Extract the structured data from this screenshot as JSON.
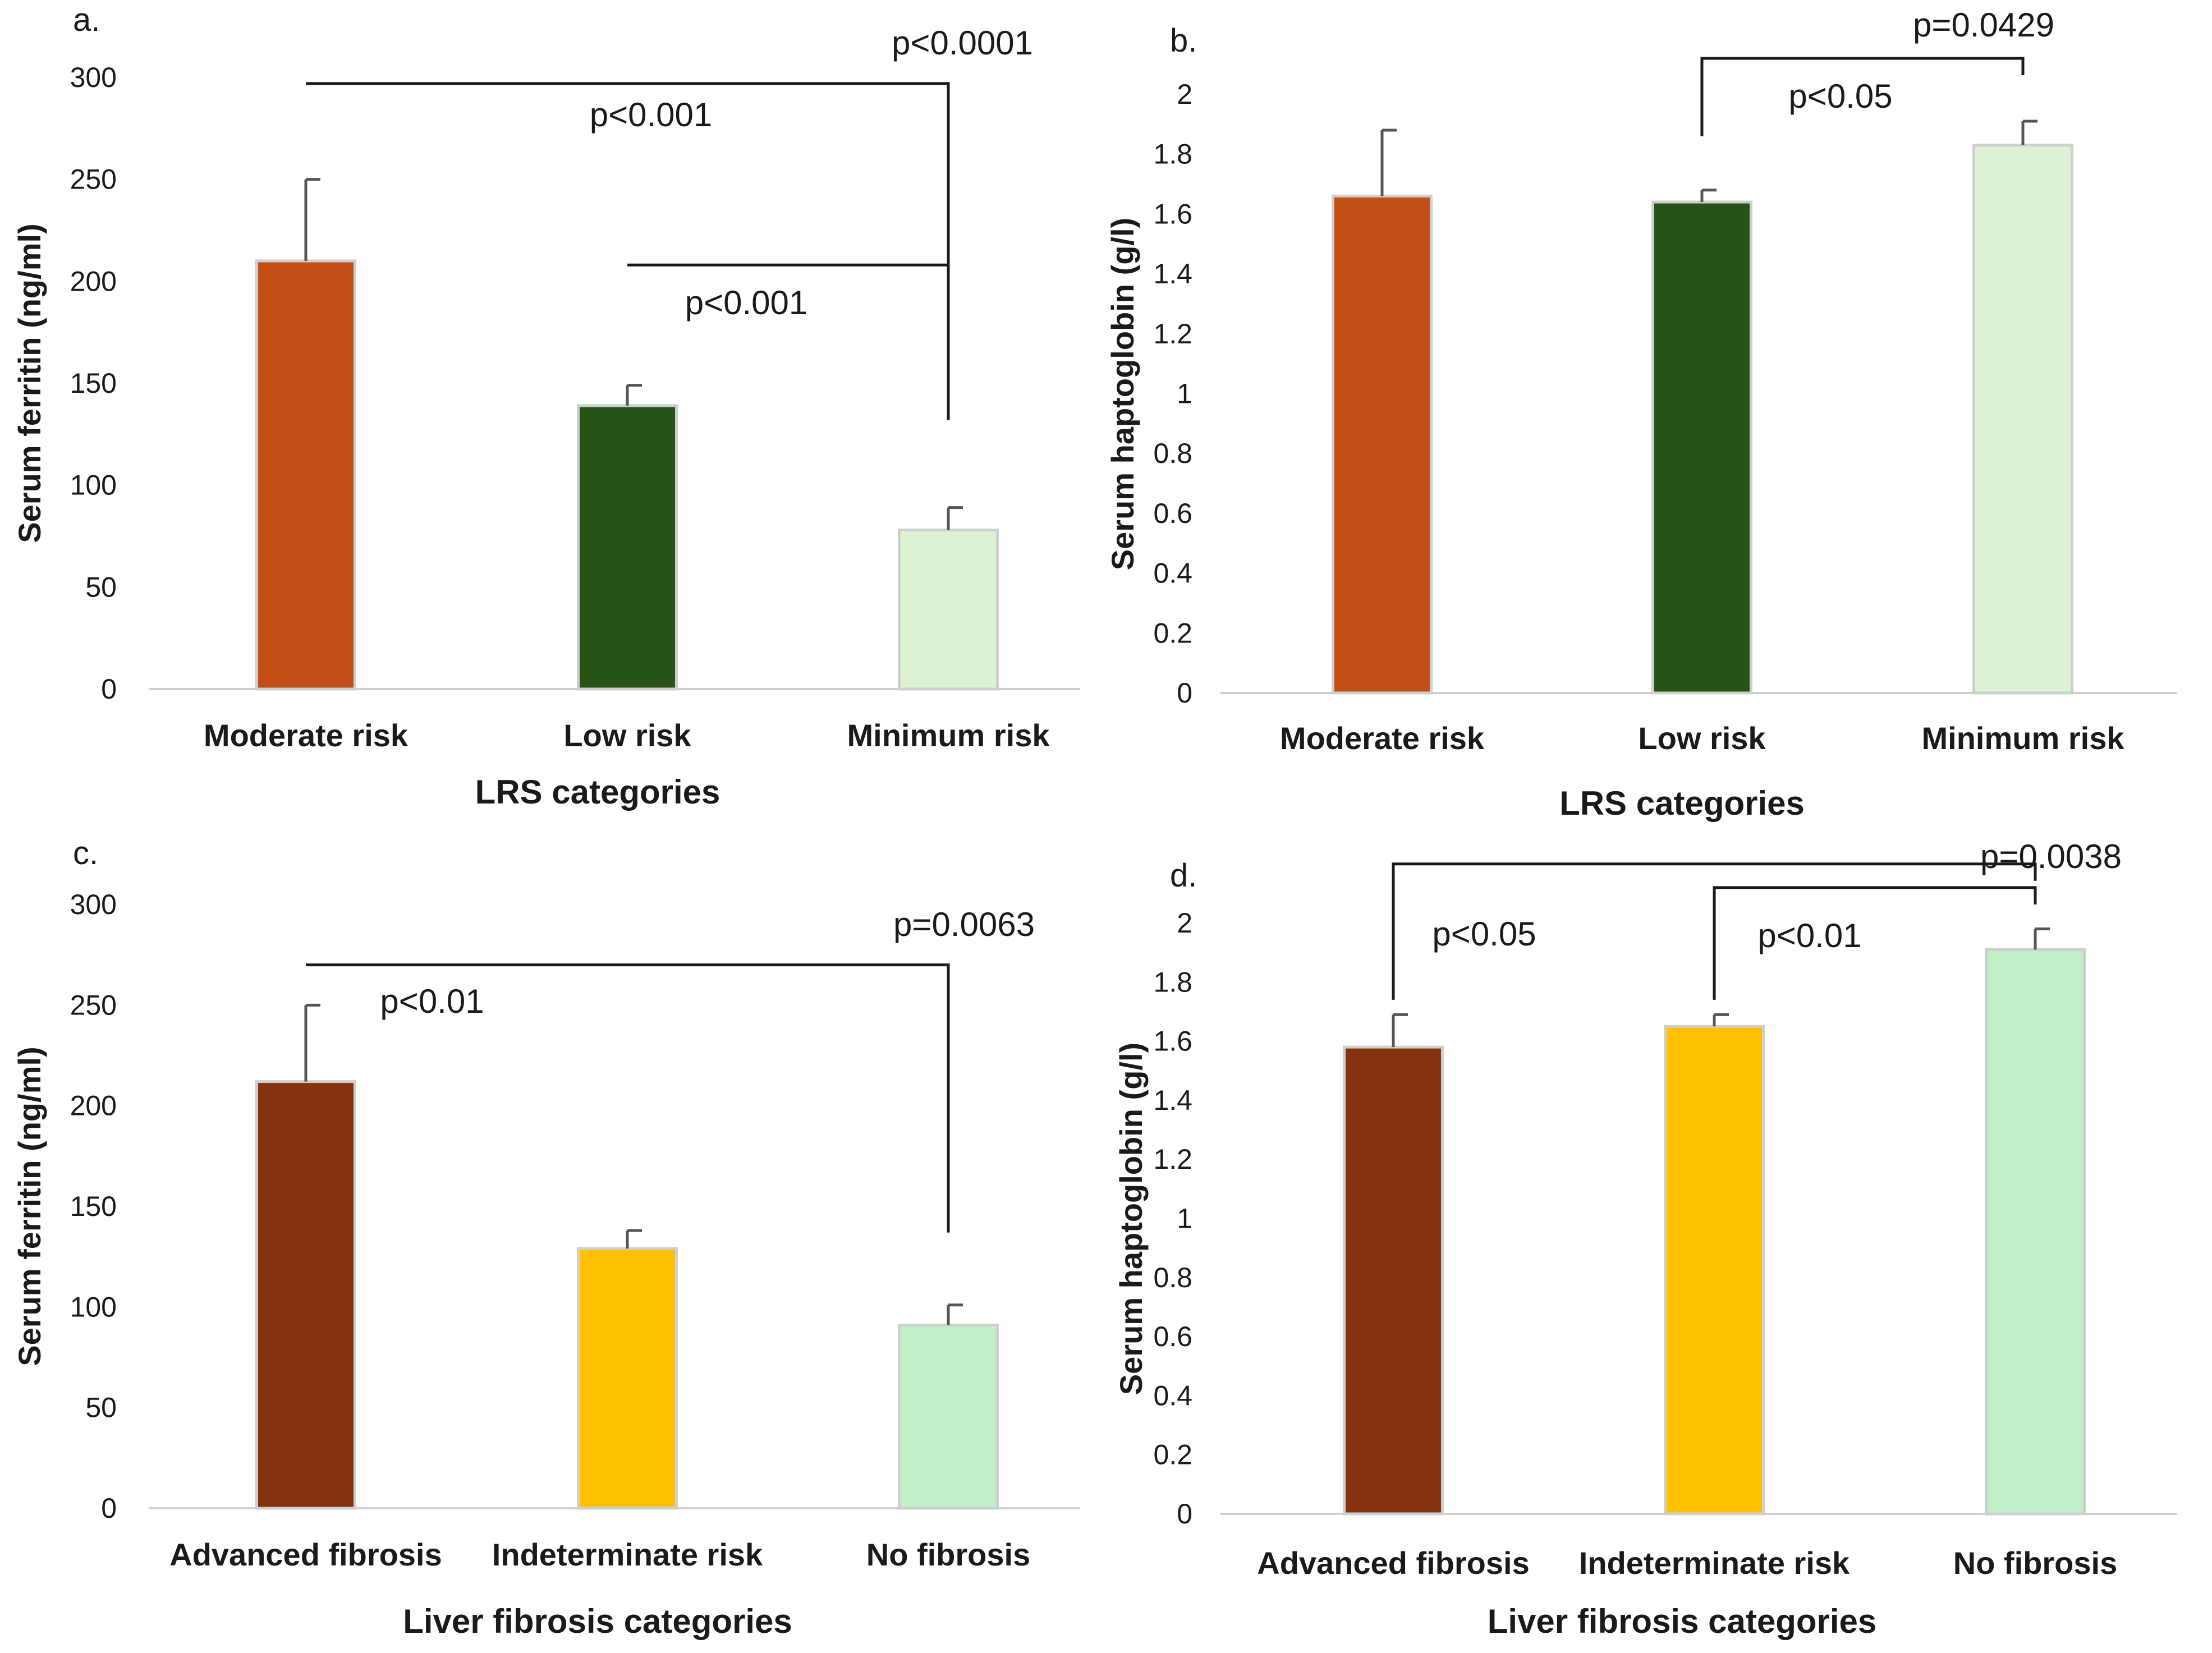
{
  "chart_data": [
    {
      "type": "bar",
      "panel_label": "a.",
      "categories": [
        "Moderate risk",
        "Low risk",
        "Minimum risk"
      ],
      "values": [
        210,
        139,
        78
      ],
      "errors": [
        40,
        10,
        11
      ],
      "colors": [
        "#C04E15",
        "#275317",
        "#DCF2D2"
      ],
      "xlabel": "LRS categories",
      "ylabel": "Serum ferritin (ng/ml)",
      "ylim": [
        0,
        300
      ],
      "yticks": [
        0,
        50,
        100,
        150,
        200,
        250,
        300
      ],
      "ytick_labels": [
        "0",
        "50",
        "100",
        "150",
        "200",
        "250",
        "300"
      ],
      "brackets": [
        {
          "from": "Moderate risk",
          "to": "Minimum risk",
          "level": 297,
          "end": 132,
          "sig": "p<0.001",
          "pval": "p<0.0001"
        },
        {
          "from": "Low risk",
          "to": "Minimum risk",
          "level": 208,
          "end": 132,
          "sig": "p<0.001",
          "pval": ""
        }
      ]
    },
    {
      "type": "bar",
      "panel_label": "b.",
      "categories": [
        "Moderate risk",
        "Low risk",
        "Minimum risk"
      ],
      "values": [
        1.66,
        1.64,
        1.83
      ],
      "errors": [
        0.22,
        0.04,
        0.08
      ],
      "colors": [
        "#C04E15",
        "#275317",
        "#DCF2D2"
      ],
      "xlabel": "LRS categories",
      "ylabel": "Serum haptoglobin (g/l)",
      "ylim": [
        0,
        2
      ],
      "yticks": [
        0,
        0.2,
        0.4,
        0.6,
        0.8,
        1,
        1.2,
        1.4,
        1.6,
        1.8,
        2
      ],
      "ytick_labels": [
        "0",
        "0.2",
        "0.4",
        "0.6",
        "0.8",
        "1",
        "1.2",
        "1.4",
        "1.6",
        "1.8",
        "2"
      ],
      "brackets": [
        {
          "from": "Low risk",
          "to": "Minimum risk",
          "level": 2.12,
          "end": 1.86,
          "sig": "p<0.05",
          "pval": "p=0.0429"
        }
      ]
    },
    {
      "type": "bar",
      "panel_label": "c.",
      "categories": [
        "Advanced fibrosis",
        "Indeterminate risk",
        "No fibrosis"
      ],
      "values": [
        212,
        129,
        91
      ],
      "errors": [
        38,
        9,
        10
      ],
      "colors": [
        "#843210",
        "#FFC000",
        "#C1F0C8"
      ],
      "xlabel": "Liver fibrosis categories",
      "ylabel": "Serum ferritin (ng/ml)",
      "ylim": [
        0,
        300
      ],
      "yticks": [
        0,
        50,
        100,
        150,
        200,
        250,
        300
      ],
      "ytick_labels": [
        "0",
        "50",
        "100",
        "150",
        "200",
        "250",
        "300"
      ],
      "brackets": [
        {
          "from": "Advanced fibrosis",
          "to": "No fibrosis",
          "level": 270,
          "end": 137,
          "sig": "p<0.01",
          "pval": "p=0.0063"
        }
      ]
    },
    {
      "type": "bar",
      "panel_label": "d.",
      "categories": [
        "Advanced fibrosis",
        "Indeterminate risk",
        "No fibrosis"
      ],
      "values": [
        1.58,
        1.65,
        1.91
      ],
      "errors": [
        0.11,
        0.04,
        0.07
      ],
      "colors": [
        "#843210",
        "#FFC000",
        "#C1F0C8"
      ],
      "xlabel": "Liver fibrosis categories",
      "ylabel": "Serum haptoglobin (g/l)",
      "ylim": [
        0,
        2
      ],
      "yticks": [
        0,
        0.2,
        0.4,
        0.6,
        0.8,
        1,
        1.2,
        1.4,
        1.6,
        1.8,
        2
      ],
      "ytick_labels": [
        "0",
        "0.2",
        "0.4",
        "0.6",
        "0.8",
        "1",
        "1.2",
        "1.4",
        "1.6",
        "1.8",
        "2"
      ],
      "brackets": [
        {
          "from": "Advanced fibrosis",
          "to": "No fibrosis",
          "level": 2.2,
          "end": 1.74,
          "sig": "p<0.05",
          "pval": "p=0.0038"
        },
        {
          "from": "Indeterminate risk",
          "to": "No fibrosis",
          "level": 2.12,
          "end": 1.74,
          "sig": "p<0.01",
          "pval": ""
        }
      ]
    }
  ]
}
